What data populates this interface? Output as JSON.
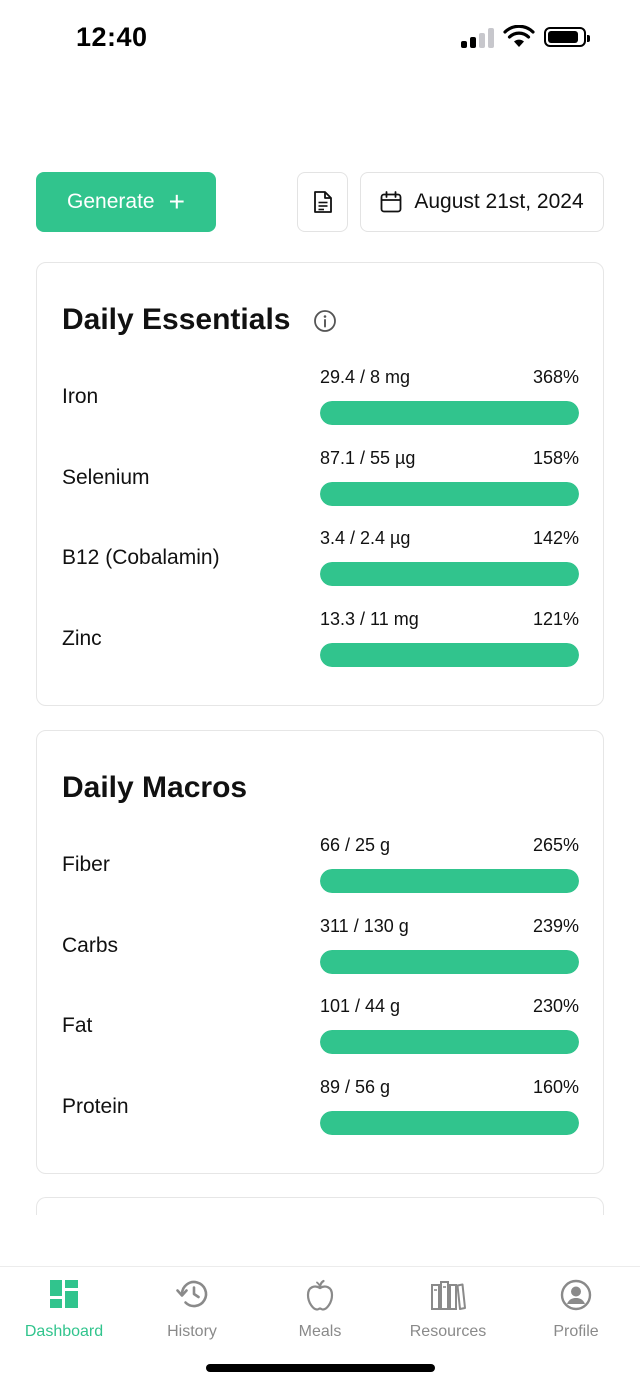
{
  "status_bar": {
    "time": "12:40"
  },
  "toolbar": {
    "generate_label": "Generate",
    "generate_icon": "plus-icon",
    "doc_icon": "document-icon",
    "date_icon": "calendar-icon",
    "date_label": "August 21st, 2024"
  },
  "essentials": {
    "title": "Daily Essentials",
    "items": [
      {
        "name": "Iron",
        "amount": "29.4 / 8 mg",
        "percent": "368%"
      },
      {
        "name": "Selenium",
        "amount": "87.1 / 55 µg",
        "percent": "158%"
      },
      {
        "name": "B12 (Cobalamin)",
        "amount": "3.4 / 2.4 µg",
        "percent": "142%"
      },
      {
        "name": "Zinc",
        "amount": "13.3 / 11 mg",
        "percent": "121%"
      }
    ]
  },
  "macros": {
    "title": "Daily Macros",
    "items": [
      {
        "name": "Fiber",
        "amount": "66 / 25 g",
        "percent": "265%"
      },
      {
        "name": "Carbs",
        "amount": "311 / 130 g",
        "percent": "239%"
      },
      {
        "name": "Fat",
        "amount": "101 / 44 g",
        "percent": "230%"
      },
      {
        "name": "Protein",
        "amount": "89 / 56 g",
        "percent": "160%"
      }
    ]
  },
  "tabs": [
    {
      "label": "Dashboard",
      "icon": "dashboard-icon",
      "active": true
    },
    {
      "label": "History",
      "icon": "history-icon",
      "active": false
    },
    {
      "label": "Meals",
      "icon": "apple-icon",
      "active": false
    },
    {
      "label": "Resources",
      "icon": "books-icon",
      "active": false
    },
    {
      "label": "Profile",
      "icon": "profile-icon",
      "active": false
    }
  ],
  "colors": {
    "accent": "#31c48d",
    "inactive": "#8a8a8a",
    "border": "#e6e6e6"
  }
}
